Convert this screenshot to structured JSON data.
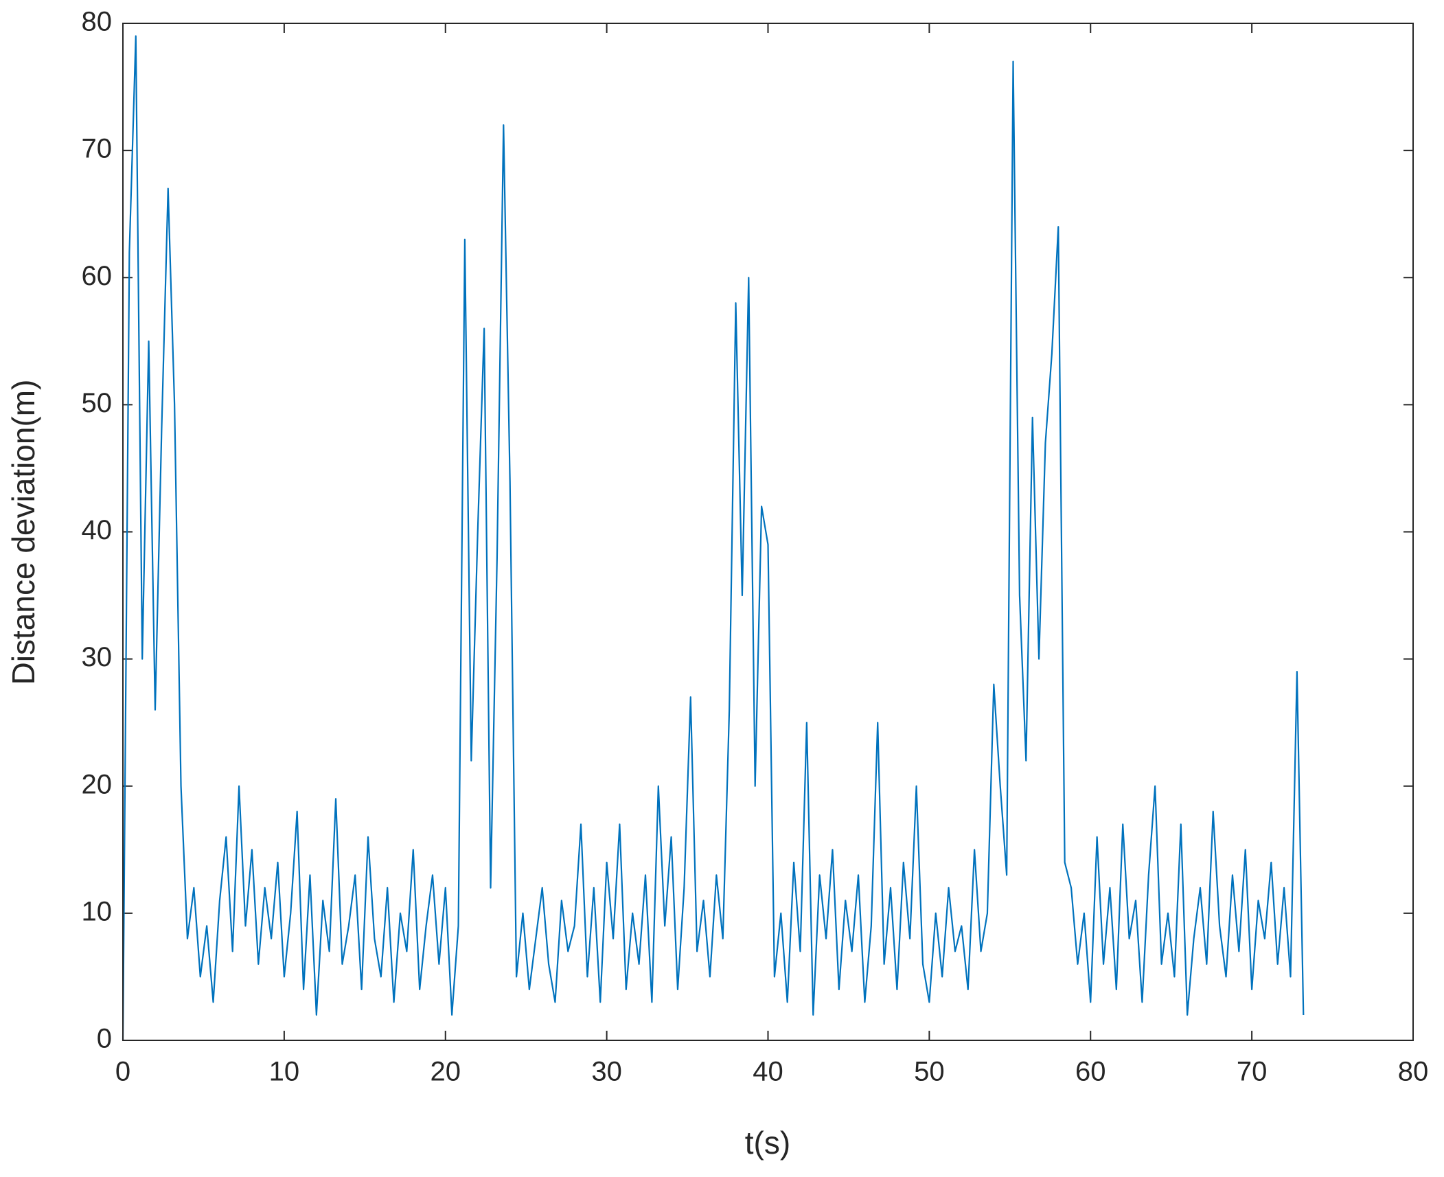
{
  "chart_data": {
    "type": "line",
    "xlabel": "t(s)",
    "ylabel": "Distance deviation(m)",
    "color": "#0072bd",
    "xlim": [
      0,
      80
    ],
    "ylim": [
      0,
      80
    ],
    "xticks": [
      0,
      10,
      20,
      30,
      40,
      50,
      60,
      70,
      80
    ],
    "yticks": [
      0,
      10,
      20,
      30,
      40,
      50,
      60,
      70,
      80
    ],
    "grid": false,
    "x": [
      0,
      0.4,
      0.8,
      1.2,
      1.6,
      2,
      2.4,
      2.8,
      3.2,
      3.6,
      4,
      4.4,
      4.8,
      5.2,
      5.6,
      6,
      6.4,
      6.8,
      7.2,
      7.6,
      8,
      8.4,
      8.8,
      9.2,
      9.6,
      10,
      10.4,
      10.8,
      11.2,
      11.6,
      12,
      12.4,
      12.8,
      13.2,
      13.6,
      14,
      14.4,
      14.8,
      15.2,
      15.6,
      16,
      16.4,
      16.8,
      17.2,
      17.6,
      18,
      18.4,
      18.8,
      19.2,
      19.6,
      20,
      20.4,
      20.8,
      21.2,
      21.6,
      22,
      22.4,
      22.8,
      23.2,
      23.6,
      24,
      24.4,
      24.8,
      25.2,
      25.6,
      26,
      26.4,
      26.8,
      27.2,
      27.6,
      28,
      28.4,
      28.8,
      29.2,
      29.6,
      30,
      30.4,
      30.8,
      31.2,
      31.6,
      32,
      32.4,
      32.8,
      33.2,
      33.6,
      34,
      34.4,
      34.8,
      35.2,
      35.6,
      36,
      36.4,
      36.8,
      37.2,
      37.6,
      38,
      38.4,
      38.8,
      39.2,
      39.6,
      40,
      40.4,
      40.8,
      41.2,
      41.6,
      42,
      42.4,
      42.8,
      43.2,
      43.6,
      44,
      44.4,
      44.8,
      45.2,
      45.6,
      46,
      46.4,
      46.8,
      47.2,
      47.6,
      48,
      48.4,
      48.8,
      49.2,
      49.6,
      50,
      50.4,
      50.8,
      51.2,
      51.6,
      52,
      52.4,
      52.8,
      53.2,
      53.6,
      54,
      54.4,
      54.8,
      55.2,
      55.6,
      56,
      56.4,
      56.8,
      57.2,
      57.6,
      58,
      58.4,
      58.8,
      59.2,
      59.6,
      60,
      60.4,
      60.8,
      61.2,
      61.6,
      62,
      62.4,
      62.8,
      63.2,
      63.6,
      64,
      64.4,
      64.8,
      65.2,
      65.6,
      66,
      66.4,
      66.8,
      67.2,
      67.6,
      68,
      68.4,
      68.8,
      69.2,
      69.6,
      70,
      70.4,
      70.8,
      71.2,
      71.6,
      72,
      72.4,
      72.8,
      73.2
    ],
    "values": [
      0,
      62,
      79,
      30,
      55,
      26,
      48,
      67,
      50,
      20,
      8,
      12,
      5,
      9,
      3,
      11,
      16,
      7,
      20,
      9,
      15,
      6,
      12,
      8,
      14,
      5,
      10,
      18,
      4,
      13,
      2,
      11,
      7,
      19,
      6,
      9,
      13,
      4,
      16,
      8,
      5,
      12,
      3,
      10,
      7,
      15,
      4,
      9,
      13,
      6,
      12,
      2,
      9,
      63,
      22,
      40,
      56,
      12,
      38,
      72,
      44,
      5,
      10,
      4,
      8,
      12,
      6,
      3,
      11,
      7,
      9,
      17,
      5,
      12,
      3,
      14,
      8,
      17,
      4,
      10,
      6,
      13,
      3,
      20,
      9,
      16,
      4,
      12,
      27,
      7,
      11,
      5,
      13,
      8,
      26,
      58,
      35,
      60,
      20,
      42,
      39,
      5,
      10,
      3,
      14,
      7,
      25,
      2,
      13,
      8,
      15,
      4,
      11,
      7,
      13,
      3,
      9,
      25,
      6,
      12,
      4,
      14,
      8,
      20,
      6,
      3,
      10,
      5,
      12,
      7,
      9,
      4,
      15,
      7,
      10,
      28,
      20,
      13,
      77,
      35,
      22,
      49,
      30,
      47,
      54,
      64,
      14,
      12,
      6,
      10,
      3,
      16,
      6,
      12,
      4,
      17,
      8,
      11,
      3,
      13,
      20,
      6,
      10,
      5,
      17,
      2,
      8,
      12,
      6,
      18,
      9,
      5,
      13,
      7,
      15,
      4,
      11,
      8,
      14,
      6,
      12,
      5,
      29,
      2
    ]
  }
}
